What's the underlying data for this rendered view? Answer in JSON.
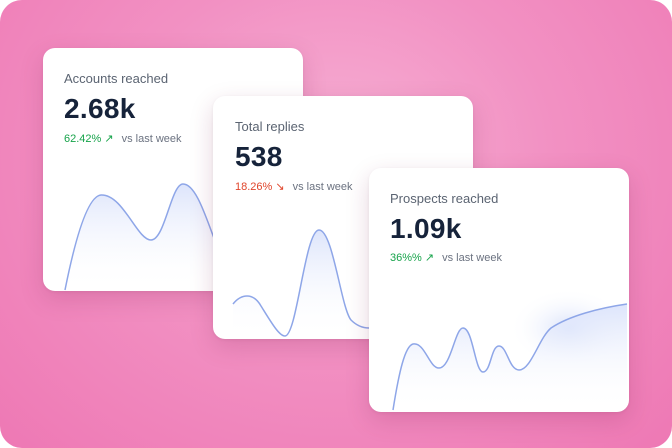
{
  "colors": {
    "accent_line": "#8ea6e8",
    "fill_top": "#dbe3fb",
    "positive": "#16a34a",
    "negative": "#e0452b",
    "background": "#f291c3"
  },
  "cards": {
    "accounts": {
      "title": "Accounts reached",
      "value": "2.68k",
      "change": "62.42%",
      "trend_icon": "arrow-up-right-icon",
      "trend_glyph": "↗",
      "comparison": "vs last week"
    },
    "replies": {
      "title": "Total replies",
      "value": "538",
      "change": "18.26%",
      "trend_icon": "arrow-down-right-icon",
      "trend_glyph": "↘",
      "comparison": "vs last week"
    },
    "prospects": {
      "title": "Prospects reached",
      "value": "1.09k",
      "change": "36%%",
      "trend_icon": "arrow-up-right-icon",
      "trend_glyph": "↗",
      "comparison": "vs last week"
    }
  }
}
